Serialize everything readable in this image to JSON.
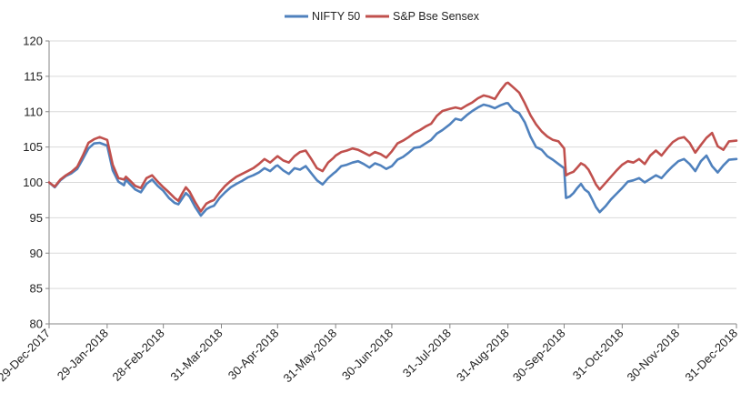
{
  "chart_data": {
    "type": "line",
    "title": "",
    "xlabel": "",
    "ylabel": "",
    "ylim": [
      80,
      120
    ],
    "yticks": [
      80,
      85,
      90,
      95,
      100,
      105,
      110,
      115,
      120
    ],
    "x_tick_labels": [
      "29-Dec-2017",
      "29-Jan-2018",
      "28-Feb-2018",
      "31-Mar-2018",
      "30-Apr-2018",
      "31-May-2018",
      "30-Jun-2018",
      "31-Jul-2018",
      "31-Aug-2018",
      "30-Sep-2018",
      "31-Oct-2018",
      "30-Nov-2018",
      "31-Dec-2018"
    ],
    "x_tick_days": [
      0,
      31,
      61,
      92,
      122,
      153,
      183,
      214,
      245,
      275,
      306,
      336,
      367
    ],
    "x_range": [
      0,
      367
    ],
    "grid": "horizontal",
    "legend_position": "top-center",
    "series": [
      {
        "name": "NIFTY 50",
        "color": "#4f81bd",
        "x": [
          0,
          3,
          6,
          9,
          12,
          15,
          18,
          21,
          24,
          27,
          31,
          34,
          37,
          40,
          41,
          43,
          46,
          49,
          52,
          55,
          58,
          61,
          64,
          67,
          69,
          71,
          73,
          75,
          78,
          81,
          84,
          86,
          88,
          91,
          94,
          97,
          100,
          103,
          106,
          109,
          112,
          115,
          118,
          121,
          122,
          125,
          128,
          131,
          134,
          137,
          140,
          143,
          146,
          149,
          152,
          153,
          156,
          159,
          162,
          165,
          168,
          171,
          174,
          177,
          180,
          183,
          186,
          189,
          192,
          195,
          198,
          201,
          204,
          207,
          210,
          214,
          217,
          220,
          223,
          226,
          229,
          232,
          235,
          238,
          241,
          244,
          245,
          248,
          251,
          254,
          257,
          260,
          263,
          266,
          269,
          272,
          275,
          276,
          278,
          280,
          282,
          284,
          286,
          288,
          290,
          292,
          294,
          297,
          300,
          303,
          306,
          309,
          312,
          315,
          318,
          321,
          324,
          327,
          330,
          333,
          336,
          339,
          342,
          345,
          348,
          351,
          354,
          357,
          360,
          363,
          367
        ],
        "y": [
          100,
          99.3,
          100.3,
          100.9,
          101.3,
          101.9,
          103.3,
          104.8,
          105.5,
          105.6,
          105.2,
          101.7,
          100.1,
          99.6,
          100.4,
          99.8,
          99.0,
          98.6,
          99.8,
          100.4,
          99.5,
          98.8,
          97.8,
          97.1,
          96.9,
          97.7,
          98.5,
          98.0,
          96.5,
          95.3,
          96.2,
          96.5,
          96.7,
          97.8,
          98.6,
          99.3,
          99.8,
          100.2,
          100.7,
          101.0,
          101.4,
          102.0,
          101.6,
          102.3,
          102.4,
          101.7,
          101.2,
          102.0,
          101.8,
          102.3,
          101.3,
          100.3,
          99.7,
          100.6,
          101.3,
          101.5,
          102.3,
          102.5,
          102.8,
          103.0,
          102.6,
          102.1,
          102.7,
          102.4,
          101.9,
          102.3,
          103.2,
          103.6,
          104.2,
          104.9,
          105.0,
          105.5,
          106.0,
          106.9,
          107.4,
          108.2,
          109.0,
          108.8,
          109.5,
          110.1,
          110.6,
          111.0,
          110.8,
          110.5,
          110.9,
          111.2,
          111.2,
          110.2,
          109.8,
          108.5,
          106.5,
          105.0,
          104.6,
          103.7,
          103.2,
          102.6,
          102.0,
          97.8,
          98.0,
          98.5,
          99.2,
          99.8,
          99.0,
          98.6,
          97.6,
          96.5,
          95.8,
          96.6,
          97.6,
          98.4,
          99.2,
          100.1,
          100.3,
          100.6,
          100.0,
          100.5,
          101.0,
          100.6,
          101.5,
          102.3,
          103.0,
          103.3,
          102.6,
          101.6,
          103.0,
          103.8,
          102.3,
          101.4,
          102.4,
          103.2,
          103.3
        ]
      },
      {
        "name": "S&P Bse Sensex",
        "color": "#c0504d",
        "x": [
          0,
          3,
          6,
          9,
          12,
          15,
          18,
          21,
          24,
          27,
          31,
          34,
          37,
          40,
          41,
          43,
          46,
          49,
          52,
          55,
          58,
          61,
          64,
          67,
          69,
          71,
          73,
          75,
          78,
          81,
          84,
          86,
          88,
          91,
          94,
          97,
          100,
          103,
          106,
          109,
          112,
          115,
          118,
          121,
          122,
          125,
          128,
          131,
          134,
          137,
          140,
          143,
          146,
          149,
          152,
          153,
          156,
          159,
          162,
          165,
          168,
          171,
          174,
          177,
          180,
          183,
          186,
          189,
          192,
          195,
          198,
          201,
          204,
          207,
          210,
          214,
          217,
          220,
          223,
          226,
          229,
          232,
          235,
          238,
          241,
          244,
          245,
          248,
          251,
          254,
          257,
          260,
          263,
          266,
          269,
          272,
          275,
          276,
          278,
          280,
          282,
          284,
          286,
          288,
          290,
          292,
          294,
          297,
          300,
          303,
          306,
          309,
          312,
          315,
          318,
          321,
          324,
          327,
          330,
          333,
          336,
          339,
          342,
          345,
          348,
          351,
          354,
          357,
          360,
          363,
          367
        ],
        "y": [
          100,
          99.4,
          100.4,
          101.0,
          101.5,
          102.2,
          103.8,
          105.6,
          106.1,
          106.4,
          106.0,
          102.5,
          100.6,
          100.4,
          100.8,
          100.3,
          99.5,
          99.2,
          100.6,
          101.0,
          100.1,
          99.3,
          98.6,
          97.8,
          97.4,
          98.4,
          99.3,
          98.7,
          97.2,
          95.9,
          97.0,
          97.3,
          97.5,
          98.6,
          99.5,
          100.2,
          100.8,
          101.2,
          101.6,
          102.0,
          102.6,
          103.3,
          102.8,
          103.5,
          103.7,
          103.1,
          102.8,
          103.7,
          104.3,
          104.5,
          103.3,
          102.0,
          101.6,
          102.8,
          103.5,
          103.8,
          104.3,
          104.5,
          104.8,
          104.6,
          104.2,
          103.8,
          104.3,
          104.0,
          103.5,
          104.4,
          105.5,
          105.9,
          106.4,
          107.0,
          107.4,
          107.9,
          108.3,
          109.4,
          110.1,
          110.4,
          110.6,
          110.4,
          110.9,
          111.3,
          111.9,
          112.3,
          112.1,
          111.8,
          113.0,
          114.0,
          114.1,
          113.4,
          112.7,
          111.2,
          109.5,
          108.2,
          107.2,
          106.5,
          106.0,
          105.8,
          104.8,
          101.0,
          101.3,
          101.5,
          102.1,
          102.7,
          102.4,
          101.8,
          100.8,
          99.7,
          99.0,
          99.9,
          100.8,
          101.7,
          102.5,
          103.0,
          102.8,
          103.3,
          102.6,
          103.8,
          104.5,
          103.8,
          104.8,
          105.7,
          106.2,
          106.4,
          105.6,
          104.2,
          105.3,
          106.3,
          107.0,
          105.1,
          104.6,
          105.8,
          105.9
        ]
      }
    ]
  }
}
